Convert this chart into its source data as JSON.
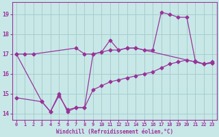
{
  "xlabel": "Windchill (Refroidissement éolien,°C)",
  "bg_color": "#c8e8e8",
  "line_color": "#993399",
  "grid_color": "#a8cccc",
  "xlim": [
    -0.5,
    23.5
  ],
  "ylim": [
    13.7,
    19.6
  ],
  "xticks": [
    0,
    1,
    2,
    3,
    4,
    5,
    6,
    7,
    8,
    9,
    10,
    11,
    12,
    13,
    14,
    15,
    16,
    17,
    18,
    19,
    20,
    21,
    22,
    23
  ],
  "yticks": [
    14,
    15,
    16,
    17,
    18,
    19
  ],
  "line1_x": [
    0,
    1,
    2,
    7,
    8,
    9,
    10,
    11,
    12,
    13,
    14,
    21,
    22,
    23
  ],
  "line1_y": [
    17.0,
    17.0,
    17.0,
    17.3,
    17.0,
    17.0,
    17.1,
    17.2,
    17.2,
    17.3,
    17.3,
    16.6,
    16.5,
    16.6
  ],
  "line2_x": [
    0,
    3,
    4,
    5,
    6,
    7,
    8,
    9,
    10,
    11,
    12,
    13,
    14,
    15,
    16,
    17,
    18,
    19,
    20,
    21,
    22,
    23
  ],
  "line2_y": [
    17.0,
    14.6,
    14.1,
    15.0,
    14.1,
    14.3,
    14.3,
    17.0,
    17.1,
    17.7,
    17.2,
    17.3,
    17.3,
    17.2,
    17.2,
    19.1,
    19.0,
    18.85,
    18.85,
    16.65,
    16.5,
    16.55
  ],
  "line3_x": [
    0,
    3,
    4,
    5,
    6,
    7,
    8,
    9,
    10,
    11,
    12,
    13,
    14,
    15,
    16,
    17,
    18,
    19,
    20,
    21,
    22,
    23
  ],
  "line3_y": [
    14.8,
    14.6,
    14.1,
    14.9,
    14.2,
    14.3,
    14.3,
    15.2,
    15.4,
    15.6,
    15.7,
    15.8,
    15.9,
    16.0,
    16.1,
    16.3,
    16.5,
    16.6,
    16.7,
    16.6,
    16.5,
    16.55
  ],
  "marker": "D",
  "markersize": 2.5,
  "linewidth": 0.9
}
